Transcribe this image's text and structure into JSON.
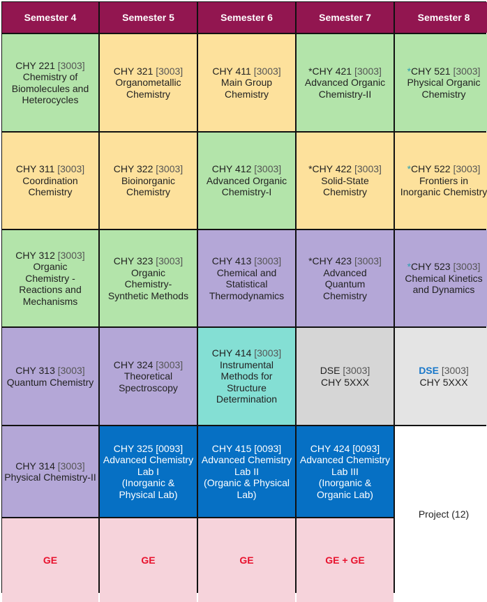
{
  "headers": [
    "Semester 4",
    "Semester 5",
    "Semester 6",
    "Semester 7",
    "Semester 8"
  ],
  "colors": {
    "header": "#921650",
    "green": "#b3e4aa",
    "yellow": "#fde19c",
    "purple": "#b4a7d7",
    "teal": "#84dfd4",
    "gray": "#d6d6d6",
    "lightgray": "#e4e4e4",
    "blue": "#0670c4",
    "pink": "#f6d3db",
    "white": "#ffffff"
  },
  "cells": [
    {
      "code": "CHY 221",
      "credits": "[3003]",
      "lines": [
        "Chemistry of",
        "Biomolecules and",
        "Heterocycles"
      ],
      "bg": "green"
    },
    {
      "code": "CHY 321",
      "credits": "[3003]",
      "lines": [
        "Organometallic",
        "Chemistry"
      ],
      "bg": "yellow"
    },
    {
      "code": "CHY 411",
      "credits": "[3003]",
      "lines": [
        "Main Group",
        "Chemistry"
      ],
      "bg": "yellow"
    },
    {
      "star": "*",
      "code": "CHY 421",
      "credits": "[3003]",
      "lines": [
        "Advanced Organic",
        "Chemistry-II"
      ],
      "bg": "green"
    },
    {
      "star": "*",
      "starClass": "star8",
      "code": "CHY 521",
      "credits": "[3003]",
      "lines": [
        "Physical Organic",
        "Chemistry"
      ],
      "bg": "green"
    },
    {
      "code": "CHY 311",
      "credits": "[3003]",
      "lines": [
        "Coordination",
        "Chemistry"
      ],
      "bg": "yellow"
    },
    {
      "code": "CHY 322",
      "credits": "[3003]",
      "lines": [
        "Bioinorganic",
        "Chemistry"
      ],
      "bg": "yellow"
    },
    {
      "code": "CHY 412",
      "credits": "[3003]",
      "lines": [
        "Advanced Organic",
        "Chemistry-I"
      ],
      "bg": "green"
    },
    {
      "star": "*",
      "code": "CHY 422",
      "credits": "[3003]",
      "lines": [
        "Solid-State",
        "Chemistry"
      ],
      "bg": "yellow"
    },
    {
      "star": "*",
      "starClass": "star8",
      "code": "CHY 522",
      "credits": "[3003]",
      "lines": [
        "Frontiers in",
        "Inorganic Chemistry"
      ],
      "bg": "yellow"
    },
    {
      "code": "CHY 312",
      "credits": "[3003]",
      "lines": [
        "Organic",
        "Chemistry -",
        "Reactions and",
        "Mechanisms"
      ],
      "bg": "green"
    },
    {
      "code": "CHY 323",
      "credits": "[3003]",
      "lines": [
        "Organic",
        "Chemistry-",
        "Synthetic Methods"
      ],
      "bg": "green"
    },
    {
      "code": "CHY 413",
      "credits": "[3003]",
      "lines": [
        "Chemical and",
        "Statistical",
        "Thermodynamics"
      ],
      "bg": "purple"
    },
    {
      "star": "*",
      "code": "CHY 423",
      "credits": "[3003]",
      "lines": [
        "Advanced",
        "Quantum",
        "Chemistry"
      ],
      "bg": "purple"
    },
    {
      "star": "*",
      "starClass": "star8",
      "code": "CHY 523",
      "credits": "[3003]",
      "lines": [
        "Chemical Kinetics",
        "and Dynamics"
      ],
      "bg": "purple"
    },
    {
      "code": "CHY 313",
      "credits": "[3003]",
      "lines": [
        "Quantum Chemistry"
      ],
      "bg": "purple"
    },
    {
      "code": "CHY 324",
      "credits": "[3003]",
      "lines": [
        "Theoretical",
        "Spectroscopy"
      ],
      "bg": "purple"
    },
    {
      "code": "CHY 414",
      "credits": "[3003]",
      "lines": [
        "Instrumental",
        "Methods for",
        "Structure",
        "Determination"
      ],
      "bg": "teal"
    },
    {
      "code": "DSE",
      "credits": "[3003]",
      "lines": [
        "CHY 5XXX"
      ],
      "bg": "gray"
    },
    {
      "code": "DSE",
      "codeClass": "dse",
      "credits": "[3003]",
      "lines": [
        "CHY 5XXX"
      ],
      "bg": "lightgray"
    },
    {
      "code": "CHY 314",
      "credits": "[3003]",
      "lines": [
        "Physical Chemistry-II"
      ],
      "bg": "purple"
    },
    {
      "code": "CHY 325",
      "credits": "[0093]",
      "lines": [
        "Advanced Chemistry",
        "Lab I",
        "(Inorganic &",
        "Physical Lab)"
      ],
      "bg": "blue"
    },
    {
      "code": "CHY 415",
      "credits": "[0093]",
      "lines": [
        "Advanced Chemistry",
        "Lab II",
        "(Organic & Physical",
        "Lab)"
      ],
      "bg": "blue"
    },
    {
      "code": "CHY 424",
      "credits": "[0093]",
      "lines": [
        "Advanced Chemistry",
        "Lab III",
        "(Inorganic &",
        "Organic Lab)"
      ],
      "bg": "blue"
    },
    {
      "project": "Project (12)",
      "bg": "white"
    },
    {
      "ge": "GE",
      "bg": "pink"
    },
    {
      "ge": "GE",
      "bg": "pink"
    },
    {
      "ge": "GE",
      "bg": "pink"
    },
    {
      "ge": "GE +  GE",
      "bg": "pink"
    }
  ]
}
